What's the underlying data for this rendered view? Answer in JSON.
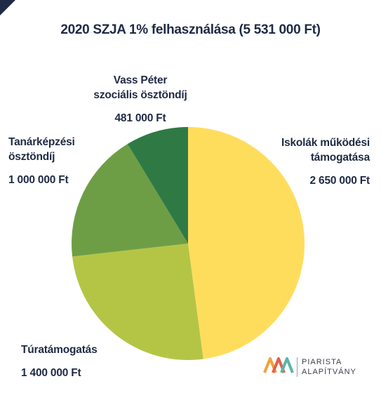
{
  "chart_data": {
    "type": "pie",
    "title": "2020 SZJA 1% felhasználása (5 531 000 Ft)",
    "slices": [
      {
        "label": "Iskolák működési támogatása",
        "value": 2650000,
        "value_label": "2 650 000 Ft",
        "color": "#ffdd5c"
      },
      {
        "label": "Túratámogatás",
        "value": 1400000,
        "value_label": "1 400 000 Ft",
        "color": "#b4c546"
      },
      {
        "label": "Tanárképzési ösztöndíj",
        "value": 1000000,
        "value_label": "1 000 000 Ft",
        "color": "#6d9e45"
      },
      {
        "label": "Vass Péter szociális ösztöndíj",
        "value": 481000,
        "value_label": "481 000 Ft",
        "color": "#2f7a44"
      }
    ]
  },
  "labels": {
    "iskola_line1": "Iskolák működési",
    "iskola_line2": "támogatása",
    "tura_line1": "Túratámogatás",
    "tanar_line1": "Tanárképzési",
    "tanar_line2": "ösztöndíj",
    "vass_line1": "Vass Péter",
    "vass_line2": "szociális ösztöndíj"
  },
  "logo": {
    "line1": "PIARISTA",
    "line2": "ALAPÍTVÁNY",
    "colors": [
      "#f0a23a",
      "#e0614a",
      "#5bb5a6"
    ]
  }
}
